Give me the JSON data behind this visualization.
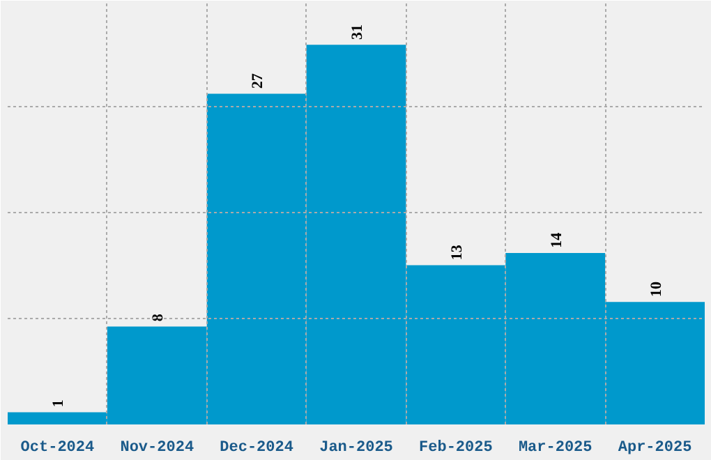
{
  "chart_data": {
    "type": "bar",
    "categories": [
      "Oct-2024",
      "Nov-2024",
      "Dec-2024",
      "Jan-2025",
      "Feb-2025",
      "Mar-2025",
      "Apr-2025"
    ],
    "values": [
      1,
      8,
      27,
      31,
      13,
      14,
      10
    ],
    "color": "#0099cc",
    "data_labels": true,
    "grid": true,
    "tick_labels": "x",
    "ylim": [
      0,
      34.6
    ],
    "yticks": [
      {
        "value": 0,
        "label": null
      },
      {
        "value": 8.6,
        "label": null
      },
      {
        "value": 17.3,
        "label": null
      },
      {
        "value": 25.9,
        "label": null
      }
    ]
  }
}
